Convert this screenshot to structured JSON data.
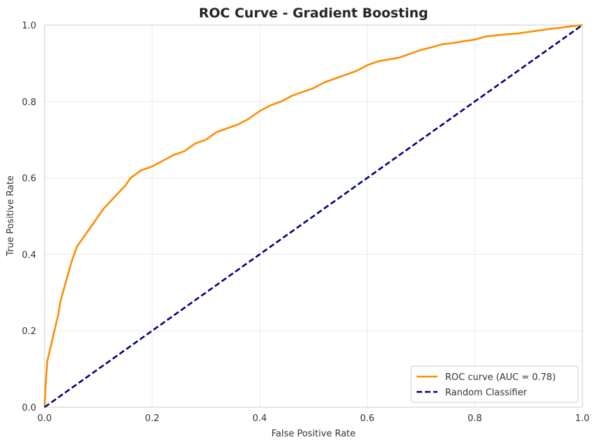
{
  "chart_data": {
    "type": "line",
    "title": "ROC Curve - Gradient Boosting",
    "xlabel": "False Positive Rate",
    "ylabel": "True Positive Rate",
    "xlim": [
      0.0,
      1.0
    ],
    "ylim": [
      0.0,
      1.0
    ],
    "xticks": [
      "0.0",
      "0.2",
      "0.4",
      "0.6",
      "0.8",
      "1.0"
    ],
    "yticks": [
      "0.0",
      "0.2",
      "0.4",
      "0.6",
      "0.8",
      "1.0"
    ],
    "grid": true,
    "legend_position": "lower-right",
    "series": [
      {
        "name": "ROC curve (AUC = 0.78)",
        "color": "#ff8c00",
        "style": "solid",
        "x": [
          0.0,
          0.002,
          0.005,
          0.01,
          0.015,
          0.02,
          0.025,
          0.03,
          0.04,
          0.05,
          0.06,
          0.07,
          0.08,
          0.09,
          0.1,
          0.11,
          0.12,
          0.13,
          0.14,
          0.15,
          0.16,
          0.17,
          0.18,
          0.19,
          0.2,
          0.22,
          0.24,
          0.26,
          0.28,
          0.3,
          0.32,
          0.34,
          0.36,
          0.38,
          0.4,
          0.42,
          0.44,
          0.46,
          0.48,
          0.5,
          0.52,
          0.54,
          0.56,
          0.58,
          0.6,
          0.62,
          0.64,
          0.66,
          0.68,
          0.7,
          0.72,
          0.74,
          0.76,
          0.78,
          0.8,
          0.82,
          0.84,
          0.86,
          0.88,
          0.9,
          0.92,
          0.94,
          0.96,
          0.98,
          1.0
        ],
        "y": [
          0.0,
          0.06,
          0.12,
          0.15,
          0.18,
          0.21,
          0.24,
          0.28,
          0.33,
          0.38,
          0.42,
          0.44,
          0.46,
          0.48,
          0.5,
          0.52,
          0.535,
          0.55,
          0.565,
          0.58,
          0.6,
          0.61,
          0.62,
          0.625,
          0.63,
          0.645,
          0.66,
          0.67,
          0.69,
          0.7,
          0.72,
          0.73,
          0.74,
          0.755,
          0.775,
          0.79,
          0.8,
          0.815,
          0.825,
          0.835,
          0.85,
          0.86,
          0.87,
          0.88,
          0.895,
          0.905,
          0.91,
          0.915,
          0.925,
          0.935,
          0.942,
          0.95,
          0.953,
          0.958,
          0.962,
          0.97,
          0.973,
          0.976,
          0.978,
          0.982,
          0.986,
          0.99,
          0.993,
          0.997,
          1.0
        ]
      },
      {
        "name": "Random Classifier",
        "color": "#000080",
        "style": "dashed",
        "x": [
          0.0,
          1.0
        ],
        "y": [
          0.0,
          1.0
        ]
      }
    ]
  }
}
